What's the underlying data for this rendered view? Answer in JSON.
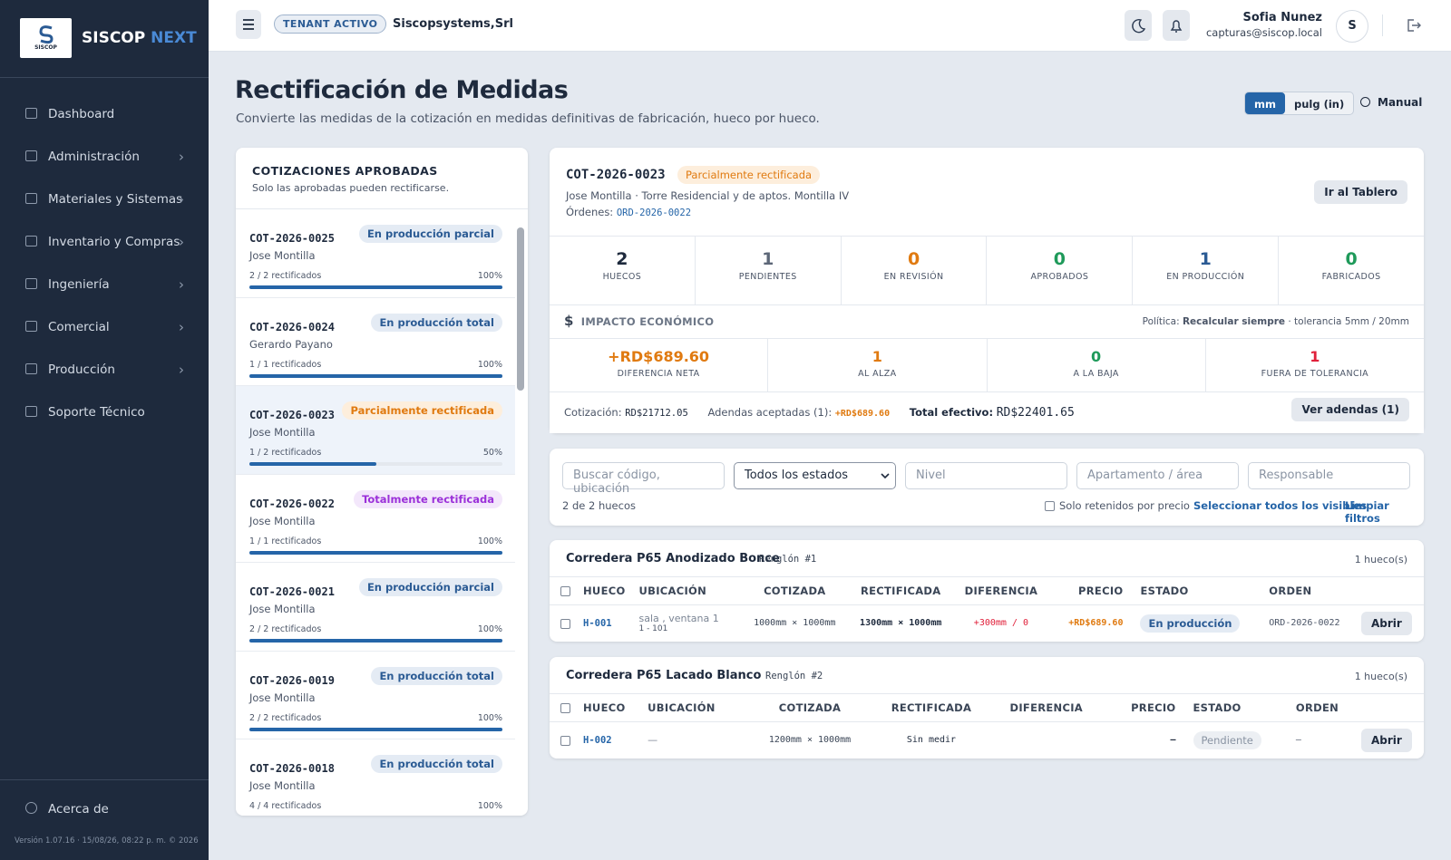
{
  "sidebar": {
    "logo_text": "SISCOP",
    "brand": "SISCOP",
    "brand_accent": "NEXT",
    "items": [
      {
        "label": "Dashboard",
        "submenu": false
      },
      {
        "label": "Administración",
        "submenu": true
      },
      {
        "label": "Materiales y Sistemas",
        "submenu": true
      },
      {
        "label": "Inventario y Compras",
        "submenu": true
      },
      {
        "label": "Ingeniería",
        "submenu": true
      },
      {
        "label": "Comercial",
        "submenu": true
      },
      {
        "label": "Producción",
        "submenu": true
      },
      {
        "label": "Soporte Técnico",
        "submenu": false
      }
    ],
    "about": "Acerca de",
    "version": "Versión 1.07.16 · 15/08/26, 08:22 p. m. © 2026"
  },
  "header": {
    "tenant_badge": "TENANT ACTIVO",
    "tenant": "Siscopsystems,Srl",
    "user_name": "Sofia Nunez",
    "user_email": "capturas@siscop.local",
    "avatar": "S"
  },
  "page": {
    "title": "Rectificación de Medidas",
    "subtitle": "Convierte las medidas de la cotización en medidas definitivas de fabricación, hueco por hueco.",
    "units": [
      "mm",
      "pulg (in)"
    ],
    "manual": "Manual"
  },
  "quotes": {
    "title": "COTIZACIONES APROBADAS",
    "subtitle": "Solo las aprobadas pueden rectificarse.",
    "items": [
      {
        "code": "COT-2026-0025",
        "status": "En producción parcial",
        "status_color": "#2b5b94",
        "status_bg": "#e4ebf4",
        "client": "Jose Montilla",
        "progress": "2 / 2 rectificados",
        "percent": {
          "value": 100,
          "label": "100%"
        }
      },
      {
        "code": "COT-2026-0024",
        "status": "En producción total",
        "status_color": "#2b5b94",
        "status_bg": "#e4ebf4",
        "client": "Gerardo Payano",
        "progress": "1 / 1 rectificados",
        "percent": {
          "value": 100,
          "label": "100%"
        }
      },
      {
        "code": "COT-2026-0023",
        "status": "Parcialmente rectificada",
        "status_color": "#e07a10",
        "status_bg": "#fdeedc",
        "client": "Jose Montilla",
        "progress": "1 / 2 rectificados",
        "percent": {
          "value": 50,
          "label": "50%"
        },
        "selected": true
      },
      {
        "code": "COT-2026-0022",
        "status": "Totalmente rectificada",
        "status_color": "#9b30d9",
        "status_bg": "#f3e7fb",
        "client": "Jose Montilla",
        "progress": "1 / 1 rectificados",
        "percent": {
          "value": 100,
          "label": "100%"
        }
      },
      {
        "code": "COT-2026-0021",
        "status": "En producción parcial",
        "status_color": "#2b5b94",
        "status_bg": "#e4ebf4",
        "client": "Jose Montilla",
        "progress": "2 / 2 rectificados",
        "percent": {
          "value": 100,
          "label": "100%"
        }
      },
      {
        "code": "COT-2026-0019",
        "status": "En producción total",
        "status_color": "#2b5b94",
        "status_bg": "#e4ebf4",
        "client": "Jose Montilla",
        "progress": "2 / 2 rectificados",
        "percent": {
          "value": 100,
          "label": "100%"
        }
      },
      {
        "code": "COT-2026-0018",
        "status": "En producción total",
        "status_color": "#2b5b94",
        "status_bg": "#e4ebf4",
        "client": "Jose Montilla",
        "progress": "4 / 4 rectificados",
        "percent": {
          "value": 100,
          "label": "100%"
        }
      }
    ]
  },
  "detail": {
    "code": "COT-2026-0023",
    "status": "Parcialmente rectificada",
    "client_line": "Jose Montilla · Torre Residencial y de aptos. Montilla IV",
    "orders_label": "Órdenes:",
    "order": "ORD-2026-0022",
    "button": "Ir al Tablero",
    "stats": [
      {
        "value": 2,
        "label": "HUECOS",
        "color": "#1e2a3d"
      },
      {
        "value": 1,
        "label": "PENDIENTES",
        "color": "#5d6778"
      },
      {
        "value": 0,
        "label": "EN REVISIÓN",
        "color": "#e07a10"
      },
      {
        "value": 0,
        "label": "APROBADOS",
        "color": "#1f9a5a"
      },
      {
        "value": 1,
        "label": "EN PRODUCCIÓN",
        "color": "#2b5b94"
      },
      {
        "value": 0,
        "label": "FABRICADOS",
        "color": "#1f9a5a"
      }
    ],
    "impact": {
      "title": "IMPACTO ECONÓMICO",
      "policy_label": "Política:",
      "policy": "Recalcular siempre",
      "tolerance": "· tolerancia 5mm / 20mm",
      "metrics": [
        {
          "value": "+RD$689.60",
          "label": "DIFERENCIA NETA",
          "color": "#e07a10"
        },
        {
          "value": 1,
          "label": "AL ALZA",
          "color": "#e07a10"
        },
        {
          "value": 0,
          "label": "A LA BAJA",
          "color": "#1f9a5a"
        },
        {
          "value": 1,
          "label": "FUERA DE TOLERANCIA",
          "color": "#e0203a"
        }
      ],
      "quote_label": "Cotización:",
      "quote_value": "RD$21712.05",
      "addenda_label": "Adendas aceptadas (1):",
      "addenda_value": "+RD$689.60",
      "total_label": "Total efectivo:",
      "total_value": "RD$22401.65",
      "addenda_button": "Ver adendas (1)"
    }
  },
  "filters": {
    "search": "Buscar código, ubicación",
    "status": "Todos los estados",
    "level": "Nivel",
    "apartment": "Apartamento / área",
    "responsible": "Responsable",
    "count": "2 de 2 huecos",
    "retained": "Solo retenidos por precio",
    "select_all": "Seleccionar todos los visibles",
    "clear": "Limpiar filtros"
  },
  "groups": [
    {
      "title": "Corredera P65 Anodizado Bonce",
      "row": "Renglón #1",
      "count": "1 hueco(s)",
      "columns": [
        "HUECO",
        "UBICACIÓN",
        "COTIZADA",
        "RECTIFICADA",
        "DIFERENCIA",
        "PRECIO",
        "ESTADO",
        "ORDEN"
      ],
      "rows": [
        {
          "hueco": "H-001",
          "location": "sala , ventana 1",
          "location_sub": "1 - 101",
          "quoted": "1000mm × 1000mm",
          "rectified": "1300mm × 1000mm",
          "difference": "+300mm / 0",
          "price": "+RD$689.60",
          "status": "En producción",
          "order": "ORD-2026-0022",
          "action": "Abrir"
        }
      ]
    },
    {
      "title": "Corredera P65 Lacado Blanco",
      "row": "Renglón #2",
      "count": "1 hueco(s)",
      "columns": [
        "HUECO",
        "UBICACIÓN",
        "COTIZADA",
        "RECTIFICADA",
        "DIFERENCIA",
        "PRECIO",
        "ESTADO",
        "ORDEN"
      ],
      "rows": [
        {
          "hueco": "H-002",
          "location": "—",
          "quoted": "1200mm × 1000mm",
          "rectified": "Sin medir",
          "price": "—",
          "status": "Pendiente",
          "order": "–",
          "action": "Abrir"
        }
      ]
    }
  ]
}
